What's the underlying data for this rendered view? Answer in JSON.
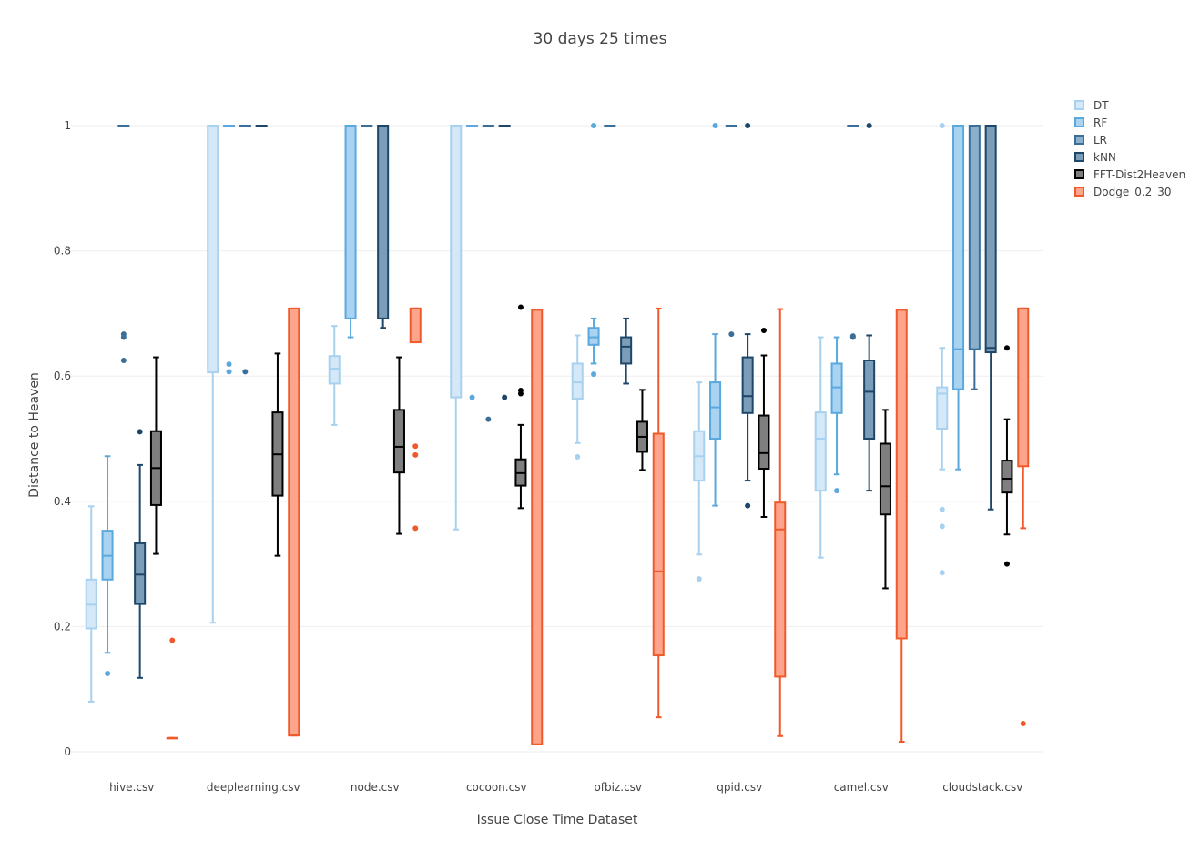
{
  "chart_data": {
    "type": "box",
    "title": "30 days 25 times",
    "xlabel": "Issue Close Time Dataset",
    "ylabel": "Distance to Heaven",
    "ylim": [
      0,
      1.0
    ],
    "yticks": [
      0,
      0.2,
      0.4,
      0.6,
      0.8,
      1
    ],
    "ytick_labels": [
      "0",
      "0.2",
      "0.4",
      "0.6",
      "0.8",
      "1"
    ],
    "grid": true,
    "legend_position": "top-right",
    "categories": [
      "hive.csv",
      "deeplearning.csv",
      "node.csv",
      "cocoon.csv",
      "ofbiz.csv",
      "qpid.csv",
      "camel.csv",
      "cloudstack.csv"
    ],
    "series": [
      {
        "name": "DT",
        "fill": "#d4e8f7",
        "stroke": "#a8d1ef",
        "boxes": [
          {
            "min": 0.08,
            "q1": 0.197,
            "median": 0.235,
            "q3": 0.275,
            "max": 0.392,
            "outliers": []
          },
          {
            "min": 0.206,
            "q1": 0.606,
            "median": 1.0,
            "q3": 1.0,
            "max": 1.0,
            "outliers": []
          },
          {
            "min": 0.522,
            "q1": 0.588,
            "median": 0.612,
            "q3": 0.632,
            "max": 0.68,
            "outliers": []
          },
          {
            "min": 0.355,
            "q1": 0.566,
            "median": 1.0,
            "q3": 1.0,
            "max": 1.0,
            "outliers": []
          },
          {
            "min": 0.493,
            "q1": 0.564,
            "median": 0.59,
            "q3": 0.62,
            "max": 0.665,
            "outliers": [
              0.471
            ]
          },
          {
            "min": 0.315,
            "q1": 0.433,
            "median": 0.472,
            "q3": 0.512,
            "max": 0.59,
            "outliers": [
              0.276
            ]
          },
          {
            "min": 0.31,
            "q1": 0.417,
            "median": 0.5,
            "q3": 0.542,
            "max": 0.662,
            "outliers": []
          },
          {
            "min": 0.451,
            "q1": 0.516,
            "median": 0.572,
            "q3": 0.582,
            "max": 0.645,
            "outliers": [
              0.387,
              0.36,
              0.286,
              1.0
            ]
          }
        ]
      },
      {
        "name": "RF",
        "fill": "#a9d3f1",
        "stroke": "#5aa9de",
        "boxes": [
          {
            "min": 0.158,
            "q1": 0.275,
            "median": 0.313,
            "q3": 0.353,
            "max": 0.472,
            "outliers": [
              0.125
            ]
          },
          {
            "min": 1.0,
            "q1": 1.0,
            "median": 1.0,
            "q3": 1.0,
            "max": 1.0,
            "outliers": [
              0.619,
              0.607
            ]
          },
          {
            "min": 0.662,
            "q1": 0.692,
            "median": 0.692,
            "q3": 1.0,
            "max": 1.0,
            "outliers": []
          },
          {
            "min": 1.0,
            "q1": 1.0,
            "median": 1.0,
            "q3": 1.0,
            "max": 1.0,
            "outliers": [
              0.566
            ]
          },
          {
            "min": 0.62,
            "q1": 0.65,
            "median": 0.662,
            "q3": 0.677,
            "max": 0.692,
            "outliers": [
              0.603,
              1.0
            ]
          },
          {
            "min": 0.393,
            "q1": 0.5,
            "median": 0.55,
            "q3": 0.59,
            "max": 0.667,
            "outliers": [
              1.0
            ]
          },
          {
            "min": 0.443,
            "q1": 0.541,
            "median": 0.582,
            "q3": 0.62,
            "max": 0.662,
            "outliers": [
              0.417
            ]
          },
          {
            "min": 0.451,
            "q1": 0.579,
            "median": 0.643,
            "q3": 1.0,
            "max": 1.0,
            "outliers": []
          }
        ]
      },
      {
        "name": "LR",
        "fill": "#8bb0cc",
        "stroke": "#3b6f99",
        "boxes": [
          {
            "min": 1.0,
            "q1": 1.0,
            "median": 1.0,
            "q3": 1.0,
            "max": 1.0,
            "outliers": [
              0.667,
              0.662,
              0.625
            ]
          },
          {
            "min": 1.0,
            "q1": 1.0,
            "median": 1.0,
            "q3": 1.0,
            "max": 1.0,
            "outliers": [
              0.607
            ]
          },
          {
            "min": 1.0,
            "q1": 1.0,
            "median": 1.0,
            "q3": 1.0,
            "max": 1.0,
            "outliers": []
          },
          {
            "min": 1.0,
            "q1": 1.0,
            "median": 1.0,
            "q3": 1.0,
            "max": 1.0,
            "outliers": [
              0.531
            ]
          },
          {
            "min": 1.0,
            "q1": 1.0,
            "median": 1.0,
            "q3": 1.0,
            "max": 1.0,
            "outliers": []
          },
          {
            "min": 1.0,
            "q1": 1.0,
            "median": 1.0,
            "q3": 1.0,
            "max": 1.0,
            "outliers": [
              0.667
            ]
          },
          {
            "min": 1.0,
            "q1": 1.0,
            "median": 1.0,
            "q3": 1.0,
            "max": 1.0,
            "outliers": [
              0.664,
              0.662
            ]
          },
          {
            "min": 0.579,
            "q1": 0.643,
            "median": 1.0,
            "q3": 1.0,
            "max": 1.0,
            "outliers": []
          }
        ]
      },
      {
        "name": "kNN",
        "fill": "#7c9db7",
        "stroke": "#1e4669",
        "boxes": [
          {
            "min": 0.118,
            "q1": 0.236,
            "median": 0.283,
            "q3": 0.333,
            "max": 0.458,
            "outliers": [
              0.511
            ]
          },
          {
            "min": 1.0,
            "q1": 1.0,
            "median": 1.0,
            "q3": 1.0,
            "max": 1.0,
            "outliers": []
          },
          {
            "min": 0.677,
            "q1": 0.692,
            "median": 1.0,
            "q3": 1.0,
            "max": 1.0,
            "outliers": []
          },
          {
            "min": 1.0,
            "q1": 1.0,
            "median": 1.0,
            "q3": 1.0,
            "max": 1.0,
            "outliers": [
              0.566
            ]
          },
          {
            "min": 0.588,
            "q1": 0.62,
            "median": 0.647,
            "q3": 0.662,
            "max": 0.692,
            "outliers": []
          },
          {
            "min": 0.433,
            "q1": 0.541,
            "median": 0.568,
            "q3": 0.63,
            "max": 0.667,
            "outliers": [
              0.393,
              1.0
            ]
          },
          {
            "min": 0.417,
            "q1": 0.5,
            "median": 0.575,
            "q3": 0.625,
            "max": 0.665,
            "outliers": [
              1.0
            ]
          },
          {
            "min": 0.387,
            "q1": 0.638,
            "median": 0.645,
            "q3": 1.0,
            "max": 1.0,
            "outliers": []
          }
        ]
      },
      {
        "name": "FFT-Dist2Heaven",
        "fill": "#7f7f7f",
        "stroke": "#000000",
        "boxes": [
          {
            "min": 0.316,
            "q1": 0.394,
            "median": 0.453,
            "q3": 0.512,
            "max": 0.63,
            "outliers": []
          },
          {
            "min": 0.313,
            "q1": 0.409,
            "median": 0.475,
            "q3": 0.542,
            "max": 0.636,
            "outliers": []
          },
          {
            "min": 0.348,
            "q1": 0.446,
            "median": 0.487,
            "q3": 0.546,
            "max": 0.63,
            "outliers": []
          },
          {
            "min": 0.389,
            "q1": 0.425,
            "median": 0.445,
            "q3": 0.467,
            "max": 0.522,
            "outliers": [
              0.71,
              0.577,
              0.572
            ]
          },
          {
            "min": 0.45,
            "q1": 0.479,
            "median": 0.503,
            "q3": 0.527,
            "max": 0.578,
            "outliers": []
          },
          {
            "min": 0.375,
            "q1": 0.452,
            "median": 0.477,
            "q3": 0.537,
            "max": 0.633,
            "outliers": [
              0.673
            ]
          },
          {
            "min": 0.261,
            "q1": 0.379,
            "median": 0.424,
            "q3": 0.492,
            "max": 0.546,
            "outliers": []
          },
          {
            "min": 0.347,
            "q1": 0.414,
            "median": 0.436,
            "q3": 0.465,
            "max": 0.531,
            "outliers": [
              0.645,
              0.3
            ]
          }
        ]
      },
      {
        "name": "Dodge_0.2_30",
        "fill": "#fca58a",
        "stroke": "#f05a2b",
        "boxes": [
          {
            "min": 0.022,
            "q1": 0.022,
            "median": 0.022,
            "q3": 0.022,
            "max": 0.022,
            "outliers": [
              0.178
            ]
          },
          {
            "min": 0.026,
            "q1": 0.026,
            "median": 0.026,
            "q3": 0.708,
            "max": 0.708,
            "outliers": []
          },
          {
            "min": 0.654,
            "q1": 0.654,
            "median": 0.708,
            "q3": 0.708,
            "max": 0.708,
            "outliers": [
              0.488,
              0.474,
              0.357
            ]
          },
          {
            "min": 0.012,
            "q1": 0.012,
            "median": 0.706,
            "q3": 0.706,
            "max": 0.706,
            "outliers": []
          },
          {
            "min": 0.055,
            "q1": 0.154,
            "median": 0.288,
            "q3": 0.508,
            "max": 0.708,
            "outliers": []
          },
          {
            "min": 0.025,
            "q1": 0.12,
            "median": 0.355,
            "q3": 0.398,
            "max": 0.707,
            "outliers": []
          },
          {
            "min": 0.016,
            "q1": 0.181,
            "median": 0.706,
            "q3": 0.706,
            "max": 0.706,
            "outliers": []
          },
          {
            "min": 0.357,
            "q1": 0.456,
            "median": 0.708,
            "q3": 0.708,
            "max": 0.708,
            "outliers": [
              0.045
            ]
          }
        ]
      }
    ]
  }
}
